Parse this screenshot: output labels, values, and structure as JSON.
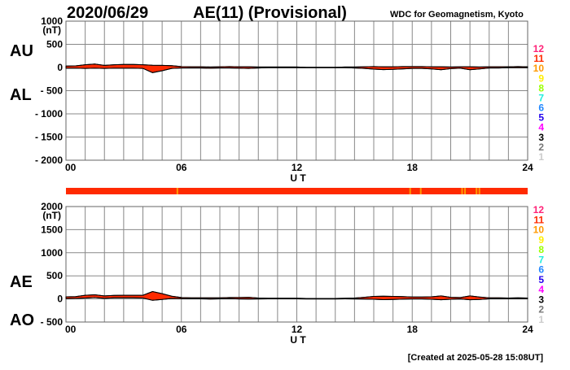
{
  "header": {
    "date": "2020/06/29",
    "title": "AE(11) (Provisional)",
    "source": "WDC for Geomagnetism, Kyoto",
    "created": "[Created at 2025-05-28 15:08UT]"
  },
  "chart_data": [
    {
      "type": "area",
      "name": "AU/AL",
      "labels": {
        "upper": "AU",
        "lower": "AL",
        "unit": "(nT)",
        "xlabel": "U T"
      },
      "ylim": [
        -2000,
        1000
      ],
      "yticks": [
        "1000",
        "500",
        "0",
        "- 500",
        "- 1000",
        "- 1500",
        "- 2000"
      ],
      "ytick_values": [
        1000,
        500,
        0,
        -500,
        -1000,
        -1500,
        -2000
      ],
      "xlim": [
        0,
        24
      ],
      "xticks": [
        "00",
        "06",
        "12",
        "18",
        "24"
      ],
      "xtick_values": [
        0,
        6,
        12,
        18,
        24
      ],
      "grid": true,
      "x_step_hours": 0.5,
      "series": [
        {
          "name": "AU",
          "values": [
            30,
            35,
            60,
            75,
            45,
            60,
            65,
            65,
            60,
            50,
            45,
            40,
            20,
            15,
            15,
            10,
            15,
            20,
            15,
            15,
            10,
            10,
            10,
            10,
            10,
            5,
            5,
            5,
            5,
            10,
            10,
            15,
            20,
            15,
            15,
            20,
            20,
            20,
            15,
            15,
            10,
            15,
            15,
            10,
            15,
            15,
            15,
            20,
            15
          ]
        },
        {
          "name": "AL",
          "values": [
            -15,
            -15,
            -20,
            -15,
            -20,
            -15,
            -15,
            -15,
            -20,
            -110,
            -70,
            -20,
            -10,
            -10,
            -10,
            -15,
            -10,
            -10,
            -15,
            -20,
            -10,
            -5,
            -5,
            -5,
            -5,
            -5,
            -5,
            -5,
            -5,
            -5,
            -10,
            -20,
            -35,
            -45,
            -40,
            -30,
            -20,
            -20,
            -30,
            -50,
            -25,
            -15,
            -50,
            -30,
            -10,
            -10,
            -5,
            -5,
            -5
          ]
        }
      ],
      "fill_color": "#ff2a00"
    },
    {
      "type": "area",
      "name": "AE/AO",
      "labels": {
        "upper": "AE",
        "lower": "AO",
        "unit": "(nT)",
        "xlabel": "U T"
      },
      "ylim": [
        -500,
        2000
      ],
      "yticks": [
        "2000",
        "1500",
        "1000",
        "500",
        "0",
        "- 500"
      ],
      "ytick_values": [
        2000,
        1500,
        1000,
        500,
        0,
        -500
      ],
      "xlim": [
        0,
        24
      ],
      "xticks": [
        "00",
        "06",
        "12",
        "18",
        "24"
      ],
      "xtick_values": [
        0,
        6,
        12,
        18,
        24
      ],
      "grid": true,
      "x_step_hours": 0.5,
      "series": [
        {
          "name": "AE",
          "values": [
            45,
            50,
            80,
            90,
            65,
            75,
            80,
            80,
            80,
            160,
            115,
            60,
            30,
            25,
            25,
            25,
            25,
            30,
            30,
            35,
            20,
            15,
            15,
            15,
            15,
            10,
            10,
            10,
            10,
            15,
            20,
            35,
            55,
            60,
            55,
            50,
            40,
            40,
            45,
            65,
            35,
            30,
            65,
            40,
            25,
            25,
            20,
            25,
            20
          ]
        },
        {
          "name": "AO",
          "values": [
            7.5,
            10,
            20,
            30,
            12.5,
            22.5,
            25,
            25,
            20,
            -30,
            -12.5,
            10,
            5,
            2.5,
            2.5,
            -2.5,
            2.5,
            5,
            0,
            -2.5,
            0,
            2.5,
            2.5,
            2.5,
            2.5,
            0,
            0,
            0,
            0,
            2.5,
            0,
            -2.5,
            -7.5,
            -15,
            -12.5,
            -5,
            0,
            0,
            -7.5,
            -17.5,
            -7.5,
            0,
            -17.5,
            -10,
            2.5,
            2.5,
            5,
            7.5,
            5
          ]
        }
      ],
      "fill_color": "#ff2a00"
    }
  ],
  "station_count_bar": {
    "default_count": 11,
    "segments_count_10_hours": [
      5.75,
      17.85,
      18.4,
      20.55,
      20.7,
      21.3,
      21.45
    ]
  },
  "station_legend": [
    {
      "label": "12",
      "color": "#ff2277"
    },
    {
      "label": "11",
      "color": "#ff2a00"
    },
    {
      "label": "10",
      "color": "#ff9900"
    },
    {
      "label": "9",
      "color": "#ffee00"
    },
    {
      "label": "8",
      "color": "#99ff00"
    },
    {
      "label": "7",
      "color": "#22eedd"
    },
    {
      "label": "6",
      "color": "#2288ff"
    },
    {
      "label": "5",
      "color": "#2200ee"
    },
    {
      "label": "4",
      "color": "#ff00ff"
    },
    {
      "label": "3",
      "color": "#000000"
    },
    {
      "label": "2",
      "color": "#777777"
    },
    {
      "label": "1",
      "color": "#cccccc"
    }
  ]
}
